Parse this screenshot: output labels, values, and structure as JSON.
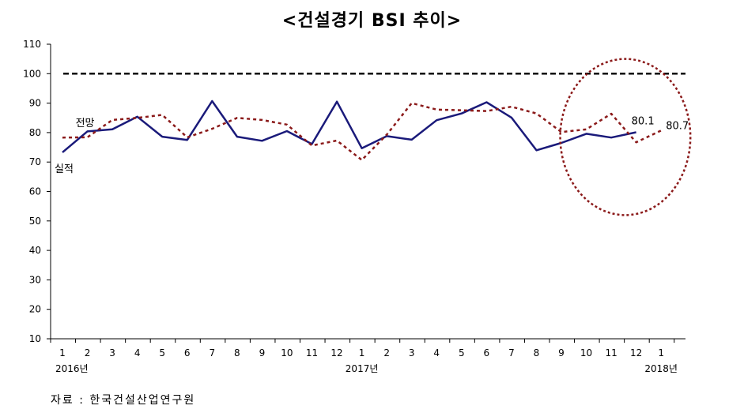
{
  "title": "<건설경기 BSI 추이>",
  "source": "자료 : 한국건설산업연구원",
  "chart_data": {
    "type": "line",
    "ylim": [
      10,
      110
    ],
    "yticks": [
      10,
      20,
      30,
      40,
      50,
      60,
      70,
      80,
      90,
      100,
      110
    ],
    "categories": [
      "1",
      "2",
      "3",
      "4",
      "5",
      "6",
      "7",
      "8",
      "9",
      "10",
      "11",
      "12",
      "1",
      "2",
      "3",
      "4",
      "5",
      "6",
      "7",
      "8",
      "9",
      "10",
      "11",
      "12",
      "1"
    ],
    "year_labels": [
      {
        "index": 0,
        "label": "2016년"
      },
      {
        "index": 12,
        "label": "2017년"
      },
      {
        "index": 24,
        "label": "2018년"
      }
    ],
    "reference_line": {
      "value": 100,
      "style": "dashed",
      "color": "#000000"
    },
    "series": [
      {
        "name": "실적",
        "style": "solid",
        "color": "#1a1a7a",
        "values": [
          73.3,
          80.4,
          81.1,
          85.4,
          78.6,
          77.5,
          90.7,
          78.6,
          77.2,
          80.5,
          76.1,
          90.5,
          74.7,
          78.8,
          77.6,
          84.2,
          86.5,
          90.3,
          85.1,
          74.0,
          76.5,
          79.6,
          78.3,
          80.1,
          null
        ]
      },
      {
        "name": "전망",
        "style": "dashed",
        "color": "#8b1a1a",
        "values": [
          78.3,
          78.4,
          84.3,
          85.0,
          86.0,
          78.4,
          81.3,
          85.0,
          84.3,
          82.7,
          75.6,
          77.3,
          70.7,
          79.3,
          90.0,
          87.8,
          87.6,
          87.3,
          88.8,
          86.5,
          80.2,
          81.1,
          86.4,
          76.7,
          80.7
        ]
      }
    ],
    "annotations": [
      {
        "text": "전망",
        "series": "전망"
      },
      {
        "text": "실적",
        "series": "실적"
      },
      {
        "text": "80.1",
        "index": 23,
        "series": "실적"
      },
      {
        "text": "80.7",
        "index": 24,
        "series": "전망"
      }
    ],
    "highlight_ellipse": {
      "x_range": [
        21,
        24
      ],
      "y_range": [
        52,
        105
      ],
      "color": "#8b1a1a"
    }
  }
}
